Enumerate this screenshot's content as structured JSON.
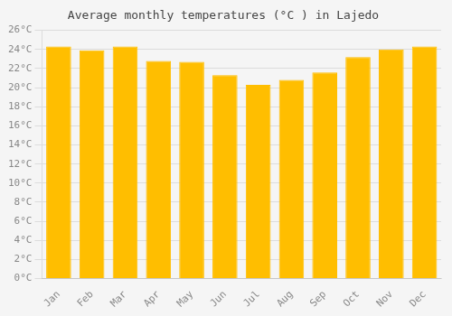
{
  "chart_data": {
    "type": "bar",
    "title": "Average monthly temperatures (°C ) in Lajedo",
    "categories": [
      "Jan",
      "Feb",
      "Mar",
      "Apr",
      "May",
      "Jun",
      "Jul",
      "Aug",
      "Sep",
      "Oct",
      "Nov",
      "Dec"
    ],
    "values": [
      24.3,
      23.9,
      24.3,
      22.8,
      22.7,
      21.3,
      20.3,
      20.8,
      21.6,
      23.2,
      24.0,
      24.3
    ],
    "color": "#FFBE00",
    "ylim": [
      0,
      26
    ],
    "yticks": [
      {
        "value": 0,
        "label": "0°C"
      },
      {
        "value": 2,
        "label": "2°C"
      },
      {
        "value": 4,
        "label": "4°C"
      },
      {
        "value": 6,
        "label": "6°C"
      },
      {
        "value": 8,
        "label": "8°C"
      },
      {
        "value": 10,
        "label": "10°C"
      },
      {
        "value": 12,
        "label": "12°C"
      },
      {
        "value": 14,
        "label": "14°C"
      },
      {
        "value": 16,
        "label": "16°C"
      },
      {
        "value": 18,
        "label": "18°C"
      },
      {
        "value": 20,
        "label": "20°C"
      },
      {
        "value": 22,
        "label": "22°C"
      },
      {
        "value": 24,
        "label": "24°C"
      },
      {
        "value": 26,
        "label": "26°C"
      }
    ],
    "grid": true
  }
}
